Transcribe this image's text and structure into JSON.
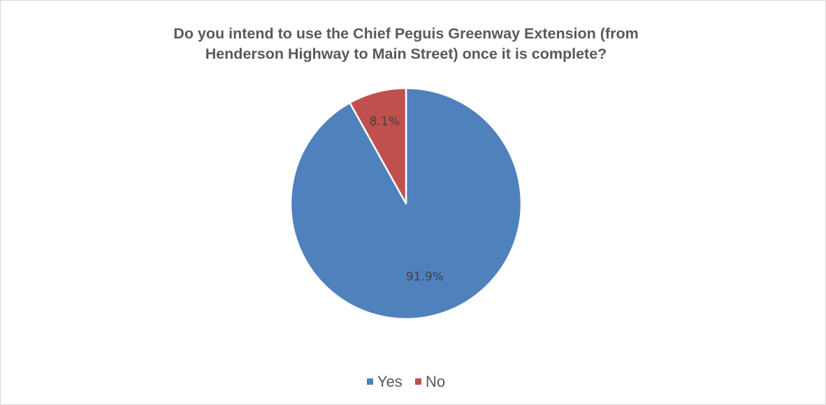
{
  "chart_data": {
    "type": "pie",
    "title_lines": [
      "Do you intend to use the Chief Peguis Greenway Extension (from",
      "Henderson Highway to Main Street) once it is complete?"
    ],
    "categories": [
      "Yes",
      "No"
    ],
    "values": [
      91.9,
      8.1
    ],
    "data_labels": [
      "91.9%",
      "8.1%"
    ],
    "colors": [
      "#4f81bd",
      "#c0504d"
    ],
    "start_angle": "12 o'clock",
    "direction": "clockwise",
    "legend_position": "bottom"
  }
}
